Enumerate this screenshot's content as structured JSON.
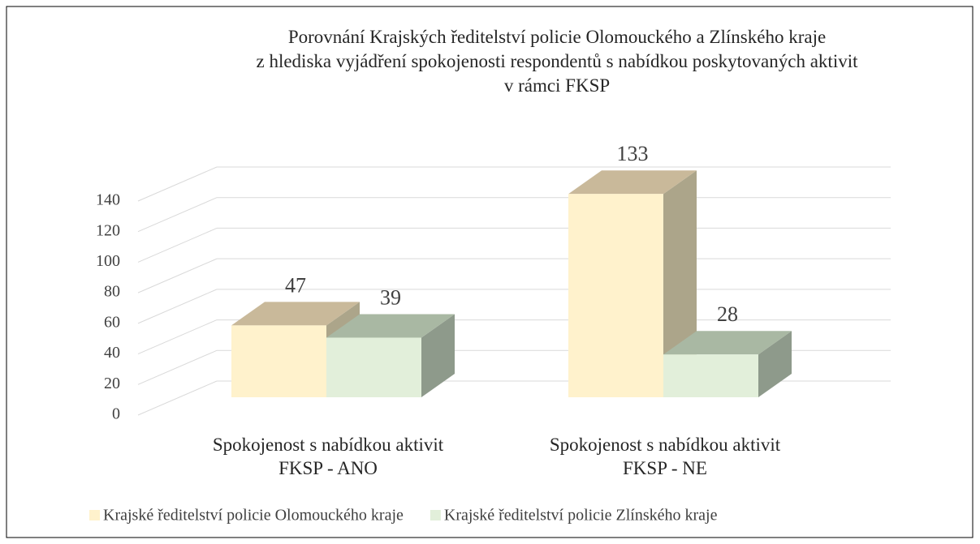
{
  "chart_data": {
    "type": "bar3d",
    "title": "Porovnání Krajských ředitelství policie Olomouckého a Zlínského kraje\nz hlediska vyjádření spokojenosti respondentů s nabídkou poskytovaných aktivit\nv rámci FKSP",
    "categories": [
      "Spokojenost s nabídkou aktivit\nFKSP - ANO",
      "Spokojenost s nabídkou aktivit\nFKSP - NE"
    ],
    "series": [
      {
        "name": "Krajské ředitelství policie Olomouckého kraje",
        "color": "#fff2cc",
        "values": [
          47,
          133
        ]
      },
      {
        "name": "Krajské ředitelství policie Zlínského kraje",
        "color": "#e2efda",
        "values": [
          39,
          28
        ]
      }
    ],
    "ylim": [
      0,
      140
    ],
    "yticks": [
      0,
      20,
      40,
      60,
      80,
      100,
      120,
      140
    ],
    "grid": true,
    "legend": "bottom"
  }
}
